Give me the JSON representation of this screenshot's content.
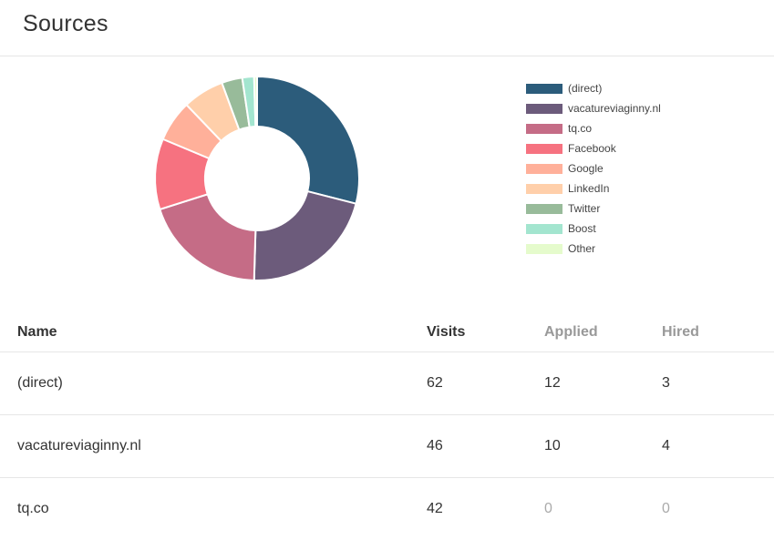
{
  "page": {
    "title": "Sources"
  },
  "chart_data": {
    "type": "pie",
    "categories": [
      "(direct)",
      "vacatureviaginny.nl",
      "tq.co",
      "Facebook",
      "Google",
      "LinkedIn",
      "Twitter",
      "Boost",
      "Other"
    ],
    "values": [
      62,
      46,
      42,
      24,
      14,
      14,
      7,
      4,
      1
    ],
    "colors": [
      "#2c5c7b",
      "#6c5b7b",
      "#c56c86",
      "#f67280",
      "#ffb09a",
      "#ffcfaa",
      "#98bb9a",
      "#a3e5cf",
      "#e5fbcc"
    ],
    "donut": true,
    "legend": "right"
  },
  "table": {
    "headers": {
      "name": "Name",
      "visits": "Visits",
      "applied": "Applied",
      "hired": "Hired"
    },
    "rows": [
      {
        "name": "(direct)",
        "visits": "62",
        "applied": "12",
        "hired": "3"
      },
      {
        "name": "vacatureviaginny.nl",
        "visits": "46",
        "applied": "10",
        "hired": "4"
      },
      {
        "name": "tq.co",
        "visits": "42",
        "applied": "0",
        "hired": "0"
      }
    ]
  }
}
